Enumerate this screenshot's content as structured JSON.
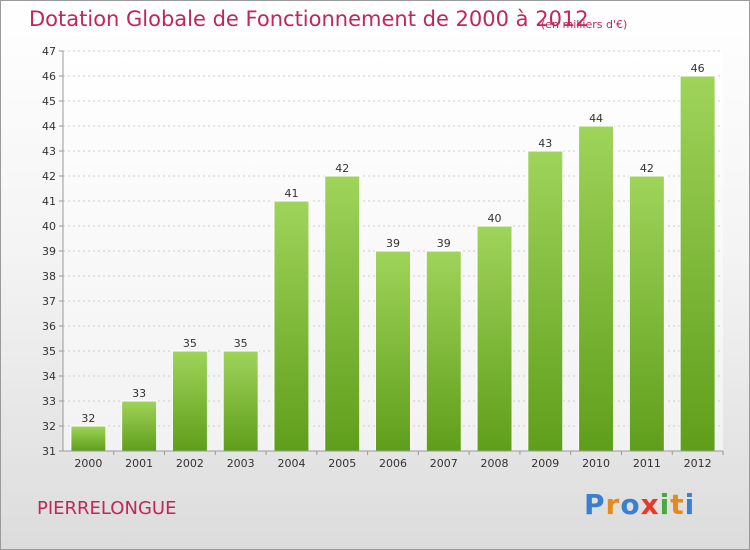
{
  "header": {
    "title": "Dotation Globale de Fonctionnement de 2000 à 2012",
    "unit": "(en milliers d'€)"
  },
  "footer": {
    "commune": "PIERRELONGUE",
    "logo_letters": [
      {
        "ch": "P",
        "color": "#3a7fd0"
      },
      {
        "ch": "r",
        "color": "#e58a1f"
      },
      {
        "ch": "o",
        "color": "#3a7fd0"
      },
      {
        "ch": "x",
        "color": "#e53a2a"
      },
      {
        "ch": "i",
        "color": "#4aa83a"
      },
      {
        "ch": "t",
        "color": "#e58a1f"
      },
      {
        "ch": "i",
        "color": "#3a7fd0"
      }
    ]
  },
  "colors": {
    "title": "#c0265a",
    "bar_top": "#9fd45a",
    "bar_bottom": "#5f9e1a",
    "grid": "#cccccc",
    "axis": "#999999"
  },
  "chart_data": {
    "type": "bar",
    "title": "Dotation Globale de Fonctionnement de 2000 à 2012",
    "subtitle": "(en milliers d'€)",
    "xlabel": "",
    "ylabel": "",
    "categories": [
      "2000",
      "2001",
      "2002",
      "2003",
      "2004",
      "2005",
      "2006",
      "2007",
      "2008",
      "2009",
      "2010",
      "2011",
      "2012"
    ],
    "values": [
      32,
      33,
      35,
      35,
      41,
      42,
      39,
      39,
      40,
      43,
      44,
      42,
      46
    ],
    "ylim": [
      31,
      47
    ],
    "yticks": [
      31,
      32,
      33,
      34,
      35,
      36,
      37,
      38,
      39,
      40,
      41,
      42,
      43,
      44,
      45,
      46,
      47
    ],
    "grid": true,
    "legend": "none"
  }
}
